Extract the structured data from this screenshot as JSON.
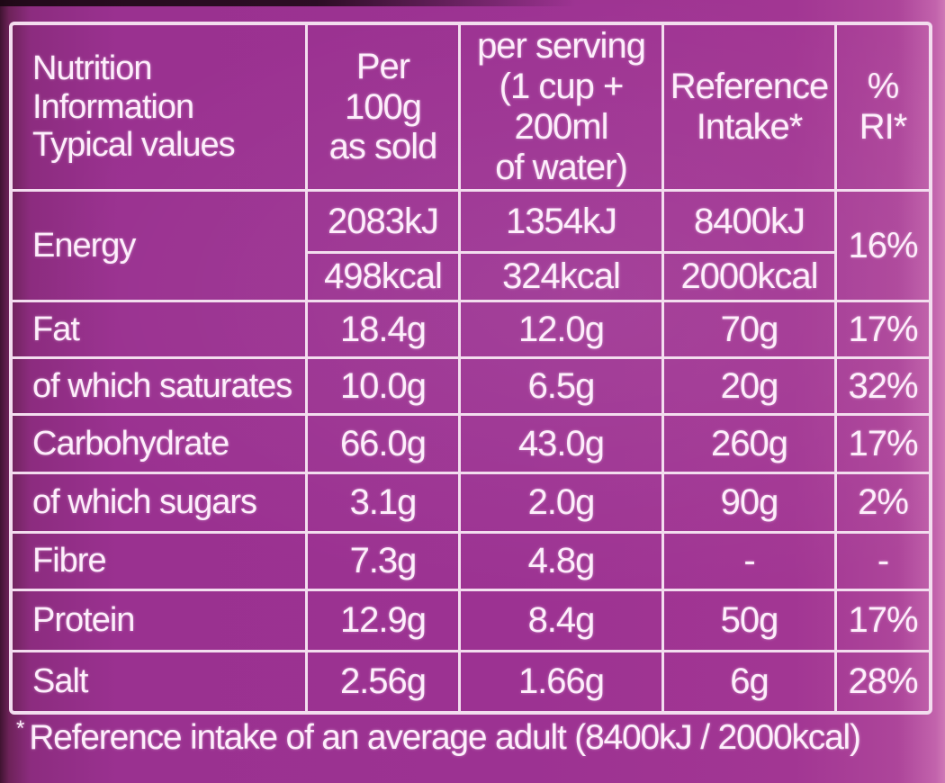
{
  "colors": {
    "background_purple": "#9a3190",
    "grid_line": "#f3ddef",
    "text": "#fdeefb"
  },
  "table": {
    "header": {
      "nutrient": "Nutrition\nInformation\nTypical values",
      "per_100g": "Per\n100g\nas sold",
      "per_serving": "per serving\n(1 cup +\n200ml\nof water)",
      "reference_intake": "Reference\nIntake*",
      "percent_ri": "%\nRI*"
    },
    "energy": {
      "label": "Energy",
      "per_100g_kj": "2083kJ",
      "per_100g_kcal": "498kcal",
      "per_serving_kj": "1354kJ",
      "per_serving_kcal": "324kcal",
      "reference_kj": "8400kJ",
      "reference_kcal": "2000kcal",
      "percent_ri": "16%"
    },
    "rows": [
      {
        "label": "Fat",
        "per_100g": "18.4g",
        "per_serving": "12.0g",
        "reference": "70g",
        "percent_ri": "17%"
      },
      {
        "label": "of which saturates",
        "per_100g": "10.0g",
        "per_serving": "6.5g",
        "reference": "20g",
        "percent_ri": "32%"
      },
      {
        "label": "Carbohydrate",
        "per_100g": "66.0g",
        "per_serving": "43.0g",
        "reference": "260g",
        "percent_ri": "17%"
      },
      {
        "label": "of which sugars",
        "per_100g": "3.1g",
        "per_serving": "2.0g",
        "reference": "90g",
        "percent_ri": "2%"
      },
      {
        "label": "Fibre",
        "per_100g": "7.3g",
        "per_serving": "4.8g",
        "reference": "-",
        "percent_ri": "-"
      },
      {
        "label": "Protein",
        "per_100g": "12.9g",
        "per_serving": "8.4g",
        "reference": "50g",
        "percent_ri": "17%"
      },
      {
        "label": "Salt",
        "per_100g": "2.56g",
        "per_serving": "1.66g",
        "reference": "6g",
        "percent_ri": "28%"
      }
    ],
    "footnote": {
      "marker": "*",
      "text": "Reference intake of an average adult (8400kJ / 2000kcal)"
    }
  }
}
